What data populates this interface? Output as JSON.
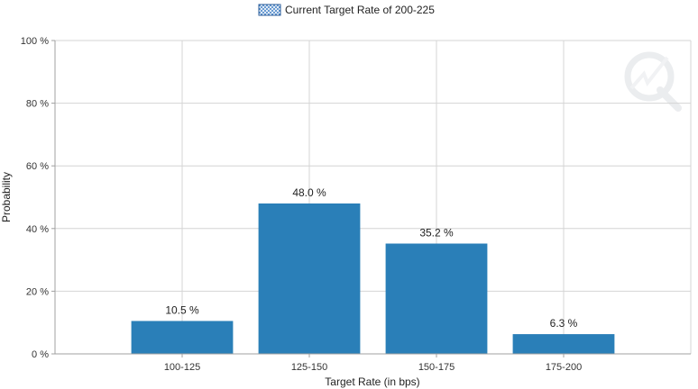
{
  "chart_data": {
    "type": "bar",
    "categories": [
      "100-125",
      "125-150",
      "150-175",
      "175-200"
    ],
    "series": [
      {
        "name": "Current Target Rate of 200-225",
        "values": [
          10.5,
          48.0,
          35.2,
          6.3
        ]
      }
    ],
    "value_labels": [
      "10.5 %",
      "48.0 %",
      "35.2 %",
      "6.3 %"
    ],
    "xlabel": "Target Rate (in bps)",
    "ylabel": "Probability",
    "ylim": [
      0,
      100
    ],
    "yticks": [
      0,
      20,
      40,
      60,
      80,
      100
    ],
    "ytick_labels": [
      "0 %",
      "20 %",
      "40 %",
      "60 %",
      "80 %",
      "100 %"
    ],
    "grid": true,
    "legend_position": "top-center",
    "colors": {
      "bar": "#2a7fb8",
      "grid": "#d4d4d4",
      "axis": "#a0a0a0",
      "legend_swatch": "#4a86c8"
    }
  }
}
